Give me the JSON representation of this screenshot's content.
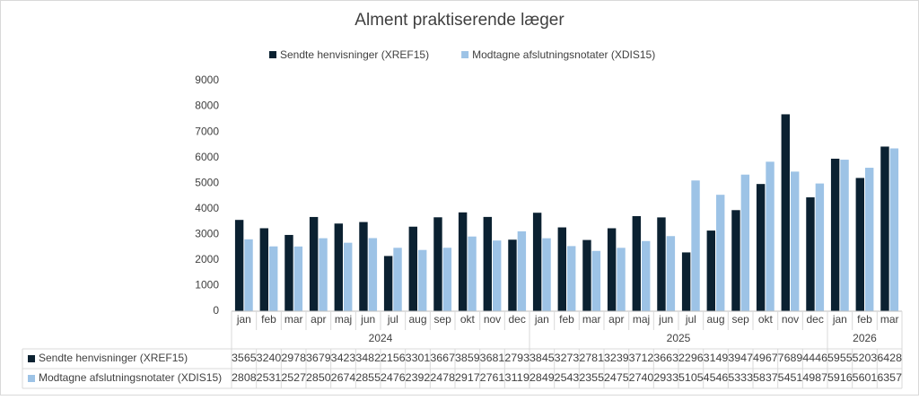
{
  "chart_data": {
    "type": "bar",
    "title": "Alment praktiserende læger",
    "category_groups": [
      {
        "name": "2024",
        "categories": [
          "jan",
          "feb",
          "mar",
          "apr",
          "maj",
          "jun",
          "jul",
          "aug",
          "sep",
          "okt",
          "nov",
          "dec"
        ]
      },
      {
        "name": "2025",
        "categories": [
          "jan",
          "feb",
          "mar",
          "apr",
          "maj",
          "jun",
          "jul",
          "aug",
          "sep",
          "okt",
          "nov",
          "dec"
        ]
      },
      {
        "name": "2026",
        "categories": [
          "jan",
          "feb",
          "mar"
        ]
      }
    ],
    "series": [
      {
        "name": "Sendte henvisninger (XREF15)",
        "color": "#0b2131",
        "values": [
          3565,
          3240,
          2978,
          3679,
          3423,
          3482,
          2156,
          3301,
          3667,
          3859,
          3681,
          2793,
          3845,
          3273,
          2781,
          3239,
          3712,
          3663,
          2296,
          3149,
          3947,
          4967,
          7689,
          4446,
          5955,
          5203,
          6428
        ]
      },
      {
        "name": "Modtagne afslutningsnotater (XDIS15)",
        "color": "#9dc3e6",
        "values": [
          2808,
          2531,
          2527,
          2850,
          2674,
          2855,
          2476,
          2392,
          2478,
          2917,
          2761,
          3119,
          2849,
          2543,
          2355,
          2475,
          2740,
          2933,
          5105,
          4546,
          5333,
          5837,
          5451,
          4987,
          5916,
          5601,
          6357
        ]
      }
    ],
    "ylim": [
      0,
      9000
    ],
    "yticks": [
      0,
      1000,
      2000,
      3000,
      4000,
      5000,
      6000,
      7000,
      8000,
      9000
    ],
    "grid": false,
    "legend": "top"
  }
}
